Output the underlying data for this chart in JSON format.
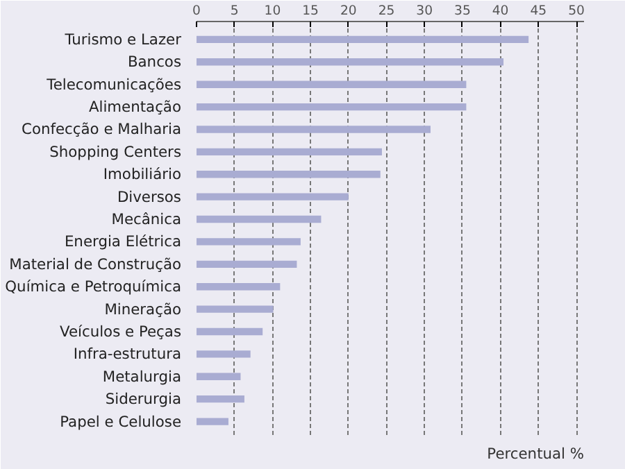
{
  "chart_data": {
    "type": "bar",
    "orientation": "horizontal",
    "xlabel": "Percentual %",
    "categories": [
      "Turismo e Lazer",
      "Bancos",
      "Telecomunicações",
      "Alimentação",
      "Confecção e Malharia",
      "Shopping Centers",
      "Imobiliário",
      "Diversos",
      "Mecânica",
      "Energia Elétrica",
      "Material de Construção",
      "Química e Petroquímica",
      "Mineração",
      "Veículos e Peças",
      "Infra-estrutura",
      "Metalurgia",
      "Siderurgia",
      "Papel e Celulose"
    ],
    "values": [
      43.7,
      40.4,
      35.5,
      35.5,
      30.8,
      24.4,
      24.2,
      20.0,
      16.4,
      13.7,
      13.2,
      11.0,
      10.1,
      8.7,
      7.1,
      5.8,
      6.3,
      4.2
    ],
    "color": "#a9acd2",
    "xlim": [
      0,
      51
    ],
    "xticks": [
      0,
      5,
      10,
      15,
      20,
      25,
      30,
      35,
      40,
      45,
      50
    ],
    "grid": "x"
  }
}
